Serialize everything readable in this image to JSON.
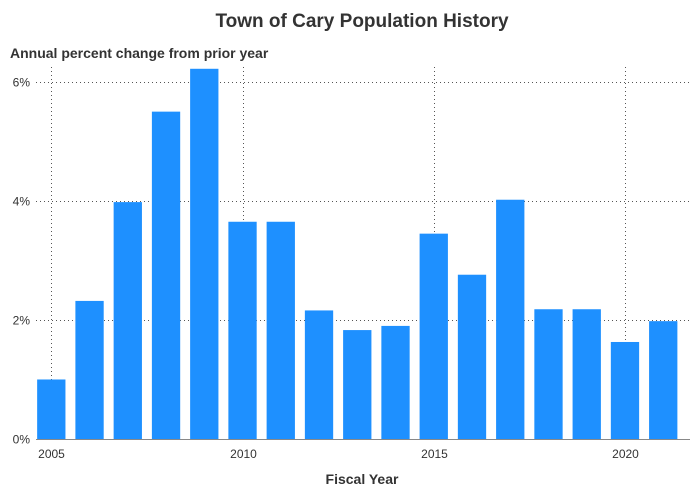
{
  "chart_data": {
    "type": "bar",
    "title": "Town of Cary Population History",
    "subtitle": "Annual percent change from prior year",
    "xlabel": "Fiscal Year",
    "ylabel": "",
    "x": [
      2005,
      2006,
      2007,
      2008,
      2009,
      2010,
      2011,
      2012,
      2013,
      2014,
      2015,
      2016,
      2017,
      2018,
      2019,
      2020,
      2021
    ],
    "values": [
      1.0,
      2.32,
      3.98,
      5.5,
      6.22,
      3.65,
      3.65,
      2.16,
      1.83,
      1.9,
      3.45,
      2.76,
      4.02,
      2.18,
      2.18,
      1.63,
      1.98
    ],
    "ylim": [
      0,
      6.25
    ],
    "xlim": [
      2004.6,
      2021.7
    ],
    "yticks": [
      0,
      2,
      4,
      6
    ],
    "ytick_labels": [
      "0%",
      "2%",
      "4%",
      "6%"
    ],
    "xticks": [
      2005,
      2010,
      2015,
      2020
    ],
    "xtick_labels": [
      "2005",
      "2010",
      "2015",
      "2020"
    ],
    "grid": "dotted, at tick positions",
    "bar_color": "#1e90ff",
    "legend": "none"
  }
}
